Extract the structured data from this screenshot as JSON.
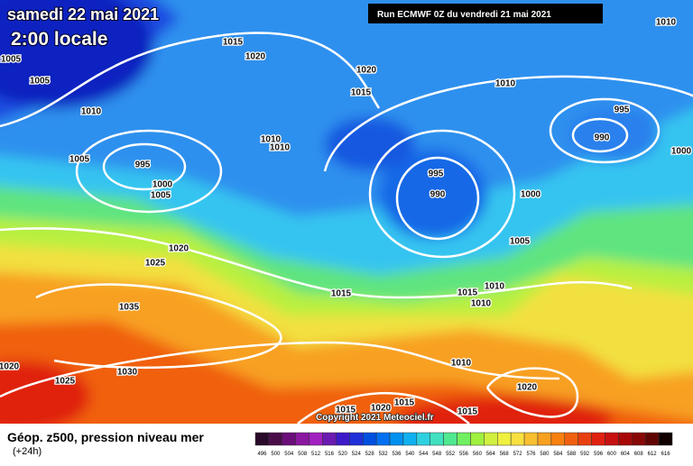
{
  "header": {
    "title": "samedi 22 mai 2021",
    "time": "2:00 locale",
    "run": "Run ECMWF 0Z du vendredi 21 mai 2021"
  },
  "isobar_labels": [
    "1005",
    "1005",
    "1010",
    "1005",
    "995",
    "1000",
    "1005",
    "1015",
    "1020",
    "1020",
    "1015",
    "1010",
    "995",
    "990",
    "1000",
    "1010",
    "1010",
    "995",
    "990",
    "1000",
    "1005",
    "1020",
    "1025",
    "1015",
    "1015",
    "1010",
    "1010",
    "1035",
    "1030",
    "1025",
    "1020",
    "1010",
    "1020",
    "1015",
    "1020",
    "1015",
    "1015",
    "1010"
  ],
  "copyright": "Copyright 2021 Meteociel.fr",
  "footer": {
    "title": "Géop. z500, pression niveau mer",
    "lead": "(+24h)"
  },
  "scale": {
    "values": [
      496,
      500,
      504,
      508,
      512,
      516,
      520,
      524,
      528,
      532,
      536,
      540,
      544,
      548,
      552,
      556,
      560,
      564,
      568,
      572,
      576,
      580,
      584,
      588,
      592,
      596,
      600,
      604,
      608,
      612,
      616
    ],
    "colors": [
      "#2a0a2a",
      "#4b0e4b",
      "#6a0e7a",
      "#8a18a0",
      "#a020c0",
      "#6a1ab0",
      "#3c1ac8",
      "#2030d8",
      "#0050e0",
      "#0070f0",
      "#0090f0",
      "#10b0f0",
      "#30d0e0",
      "#40e0c0",
      "#50e890",
      "#70f060",
      "#a0f040",
      "#d0f040",
      "#f0f040",
      "#f8e040",
      "#f8c030",
      "#f8a020",
      "#f88010",
      "#f06010",
      "#e84010",
      "#e02010",
      "#c81010",
      "#a80808",
      "#880808",
      "#600404",
      "#100000"
    ]
  }
}
